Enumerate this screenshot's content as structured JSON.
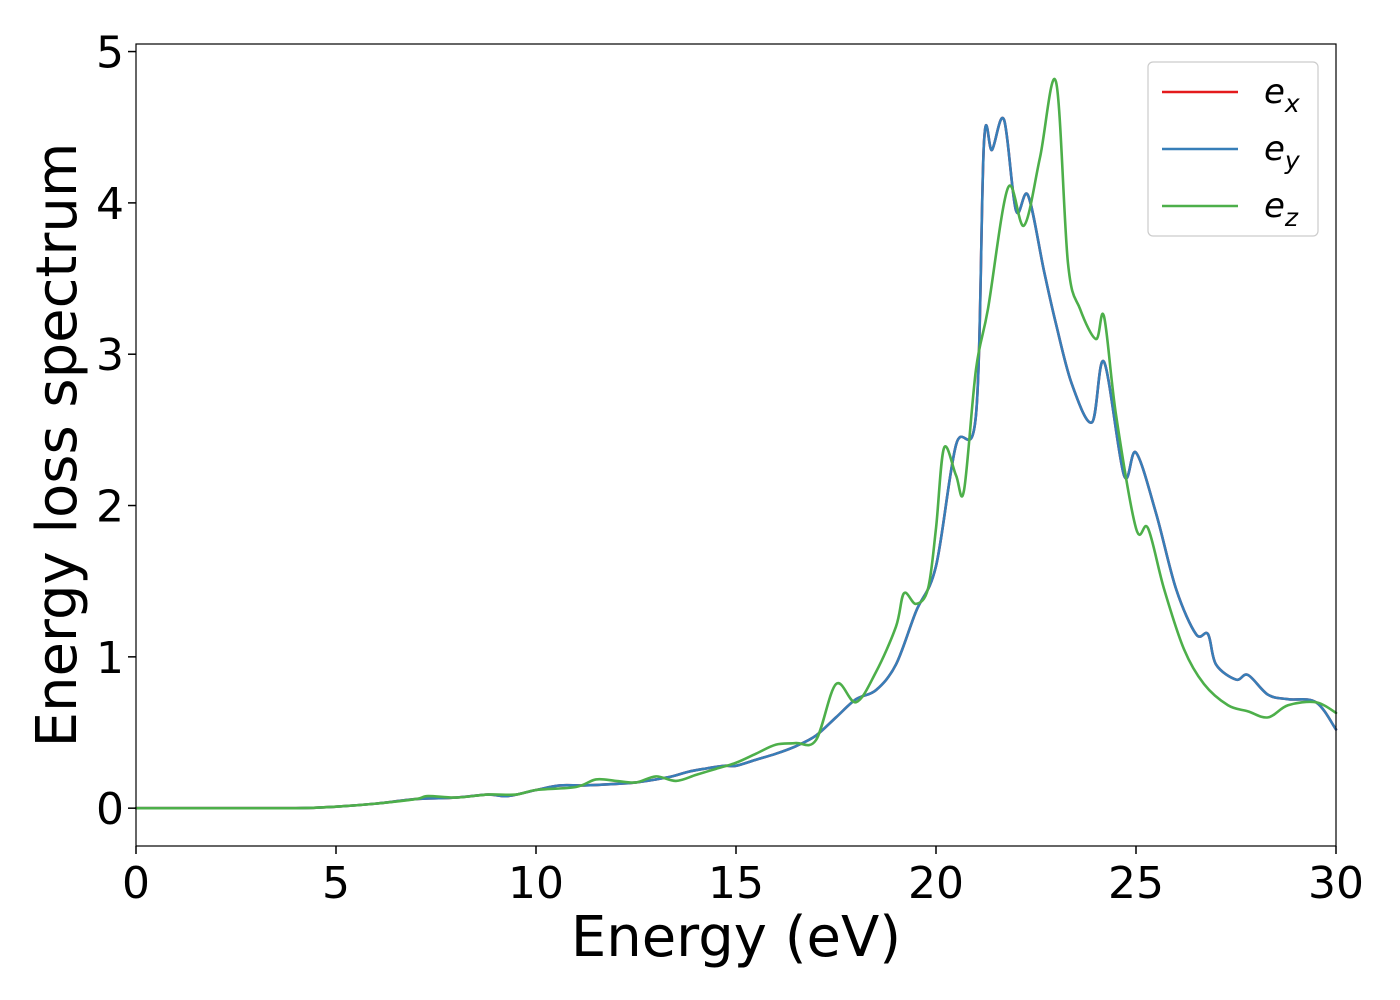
{
  "chart_data": {
    "type": "line",
    "title": "",
    "xlabel": "Energy (eV)",
    "ylabel": "Energy loss spectrum",
    "xlim": [
      0,
      30
    ],
    "ylim": [
      -0.25,
      5.05
    ],
    "xticks": [
      0,
      5,
      10,
      15,
      20,
      25,
      30
    ],
    "yticks": [
      0,
      1,
      2,
      3,
      4,
      5
    ],
    "grid": false,
    "legend_position": "top-right",
    "series": [
      {
        "name": "e",
        "subscript": "x",
        "color": "#e41a1c",
        "x": [
          0,
          2,
          4,
          5,
          6,
          7,
          8,
          8.8,
          9.3,
          10,
          10.6,
          11.2,
          12,
          12.5,
          13,
          13.4,
          13.8,
          14.2,
          14.7,
          15,
          15.5,
          16,
          16.5,
          17,
          17.5,
          18,
          18.5,
          19,
          19.5,
          20,
          20.5,
          21,
          21.2,
          21.4,
          21.7,
          22,
          22.3,
          22.7,
          23,
          23.4,
          23.9,
          24.2,
          24.7,
          25,
          25.5,
          26,
          26.5,
          26.8,
          27,
          27.5,
          27.8,
          28.3,
          28.8,
          29.5,
          30
        ],
        "y": [
          0,
          0,
          0,
          0.01,
          0.03,
          0.06,
          0.07,
          0.09,
          0.08,
          0.12,
          0.15,
          0.15,
          0.16,
          0.17,
          0.19,
          0.21,
          0.24,
          0.26,
          0.28,
          0.28,
          0.32,
          0.36,
          0.41,
          0.48,
          0.6,
          0.72,
          0.78,
          0.95,
          1.3,
          1.6,
          2.4,
          2.6,
          4.4,
          4.35,
          4.55,
          3.95,
          4.05,
          3.55,
          3.2,
          2.8,
          2.55,
          2.95,
          2.2,
          2.35,
          1.95,
          1.45,
          1.15,
          1.15,
          0.95,
          0.85,
          0.88,
          0.75,
          0.72,
          0.7,
          0.52
        ]
      },
      {
        "name": "e",
        "subscript": "y",
        "color": "#377eb8",
        "x": [
          0,
          2,
          4,
          5,
          6,
          7,
          8,
          8.8,
          9.3,
          10,
          10.6,
          11.2,
          12,
          12.5,
          13,
          13.4,
          13.8,
          14.2,
          14.7,
          15,
          15.5,
          16,
          16.5,
          17,
          17.5,
          18,
          18.5,
          19,
          19.5,
          20,
          20.5,
          21,
          21.2,
          21.4,
          21.7,
          22,
          22.3,
          22.7,
          23,
          23.4,
          23.9,
          24.2,
          24.7,
          25,
          25.5,
          26,
          26.5,
          26.8,
          27,
          27.5,
          27.8,
          28.3,
          28.8,
          29.5,
          30
        ],
        "y": [
          0,
          0,
          0,
          0.01,
          0.03,
          0.06,
          0.07,
          0.09,
          0.08,
          0.12,
          0.15,
          0.15,
          0.16,
          0.17,
          0.19,
          0.21,
          0.24,
          0.26,
          0.28,
          0.28,
          0.32,
          0.36,
          0.41,
          0.48,
          0.6,
          0.72,
          0.78,
          0.95,
          1.3,
          1.6,
          2.4,
          2.6,
          4.4,
          4.35,
          4.55,
          3.95,
          4.05,
          3.55,
          3.2,
          2.8,
          2.55,
          2.95,
          2.2,
          2.35,
          1.95,
          1.45,
          1.15,
          1.15,
          0.95,
          0.85,
          0.88,
          0.75,
          0.72,
          0.7,
          0.52
        ]
      },
      {
        "name": "e",
        "subscript": "z",
        "color": "#4daf4a",
        "x": [
          0,
          2,
          4,
          5,
          6,
          7,
          7.3,
          8,
          8.8,
          9.5,
          10,
          11,
          11.5,
          12,
          12.5,
          13,
          13.5,
          14,
          14.5,
          15,
          15.5,
          16,
          16.5,
          17,
          17.5,
          18,
          18.5,
          19,
          19.2,
          19.5,
          19.8,
          20,
          20.2,
          20.5,
          20.7,
          21,
          21.3,
          21.8,
          22.2,
          22.6,
          23,
          23.3,
          23.6,
          24,
          24.2,
          24.5,
          25,
          25.3,
          25.7,
          26.2,
          26.7,
          27.3,
          27.8,
          28.3,
          28.8,
          29.5,
          30
        ],
        "y": [
          0,
          0,
          0,
          0.01,
          0.03,
          0.06,
          0.08,
          0.07,
          0.09,
          0.09,
          0.12,
          0.14,
          0.19,
          0.18,
          0.17,
          0.21,
          0.18,
          0.22,
          0.26,
          0.3,
          0.36,
          0.42,
          0.43,
          0.45,
          0.82,
          0.7,
          0.9,
          1.2,
          1.42,
          1.35,
          1.45,
          1.85,
          2.38,
          2.2,
          2.1,
          2.9,
          3.3,
          4.1,
          3.85,
          4.3,
          4.8,
          3.6,
          3.3,
          3.1,
          3.25,
          2.6,
          1.85,
          1.85,
          1.45,
          1.05,
          0.82,
          0.68,
          0.64,
          0.6,
          0.68,
          0.7,
          0.63
        ]
      }
    ]
  }
}
